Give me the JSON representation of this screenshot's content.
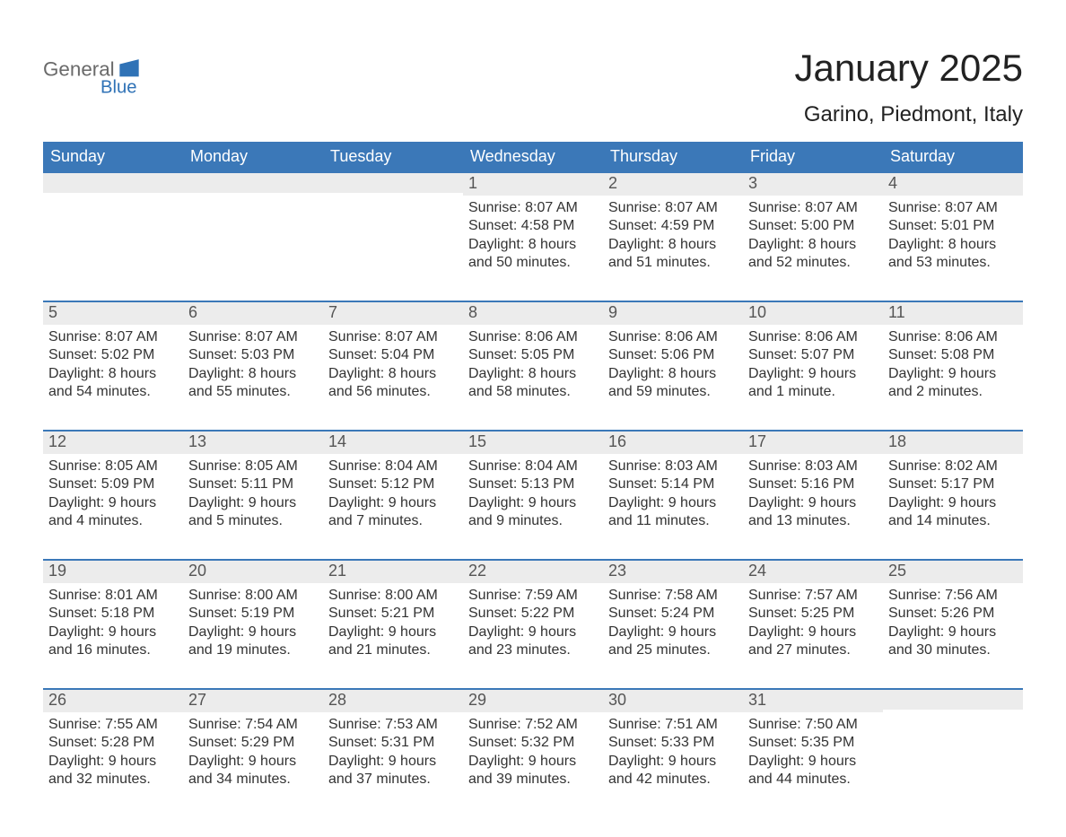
{
  "brand": {
    "word_general": "General",
    "word_blue": "Blue",
    "logo_gray": "#6a6a6a",
    "logo_blue": "#2f72b6"
  },
  "header": {
    "month_title": "January 2025",
    "location": "Garino, Piedmont, Italy"
  },
  "colors": {
    "header_bg": "#3b78b8",
    "daynum_bg": "#ececec",
    "border_blue": "#3b78b8",
    "text_dark": "#333333"
  },
  "calendar": {
    "weekdays": [
      "Sunday",
      "Monday",
      "Tuesday",
      "Wednesday",
      "Thursday",
      "Friday",
      "Saturday"
    ],
    "labels": {
      "sunrise": "Sunrise:",
      "sunset": "Sunset:",
      "daylight": "Daylight:",
      "and": "and"
    },
    "weeks": [
      [
        {
          "day": null
        },
        {
          "day": null
        },
        {
          "day": null
        },
        {
          "day": 1,
          "sunrise": "8:07 AM",
          "sunset": "4:58 PM",
          "dl_h": 8,
          "dl_m": 50
        },
        {
          "day": 2,
          "sunrise": "8:07 AM",
          "sunset": "4:59 PM",
          "dl_h": 8,
          "dl_m": 51
        },
        {
          "day": 3,
          "sunrise": "8:07 AM",
          "sunset": "5:00 PM",
          "dl_h": 8,
          "dl_m": 52
        },
        {
          "day": 4,
          "sunrise": "8:07 AM",
          "sunset": "5:01 PM",
          "dl_h": 8,
          "dl_m": 53
        }
      ],
      [
        {
          "day": 5,
          "sunrise": "8:07 AM",
          "sunset": "5:02 PM",
          "dl_h": 8,
          "dl_m": 54
        },
        {
          "day": 6,
          "sunrise": "8:07 AM",
          "sunset": "5:03 PM",
          "dl_h": 8,
          "dl_m": 55
        },
        {
          "day": 7,
          "sunrise": "8:07 AM",
          "sunset": "5:04 PM",
          "dl_h": 8,
          "dl_m": 56
        },
        {
          "day": 8,
          "sunrise": "8:06 AM",
          "sunset": "5:05 PM",
          "dl_h": 8,
          "dl_m": 58
        },
        {
          "day": 9,
          "sunrise": "8:06 AM",
          "sunset": "5:06 PM",
          "dl_h": 8,
          "dl_m": 59
        },
        {
          "day": 10,
          "sunrise": "8:06 AM",
          "sunset": "5:07 PM",
          "dl_h": 9,
          "dl_m": 1
        },
        {
          "day": 11,
          "sunrise": "8:06 AM",
          "sunset": "5:08 PM",
          "dl_h": 9,
          "dl_m": 2
        }
      ],
      [
        {
          "day": 12,
          "sunrise": "8:05 AM",
          "sunset": "5:09 PM",
          "dl_h": 9,
          "dl_m": 4
        },
        {
          "day": 13,
          "sunrise": "8:05 AM",
          "sunset": "5:11 PM",
          "dl_h": 9,
          "dl_m": 5
        },
        {
          "day": 14,
          "sunrise": "8:04 AM",
          "sunset": "5:12 PM",
          "dl_h": 9,
          "dl_m": 7
        },
        {
          "day": 15,
          "sunrise": "8:04 AM",
          "sunset": "5:13 PM",
          "dl_h": 9,
          "dl_m": 9
        },
        {
          "day": 16,
          "sunrise": "8:03 AM",
          "sunset": "5:14 PM",
          "dl_h": 9,
          "dl_m": 11
        },
        {
          "day": 17,
          "sunrise": "8:03 AM",
          "sunset": "5:16 PM",
          "dl_h": 9,
          "dl_m": 13
        },
        {
          "day": 18,
          "sunrise": "8:02 AM",
          "sunset": "5:17 PM",
          "dl_h": 9,
          "dl_m": 14
        }
      ],
      [
        {
          "day": 19,
          "sunrise": "8:01 AM",
          "sunset": "5:18 PM",
          "dl_h": 9,
          "dl_m": 16
        },
        {
          "day": 20,
          "sunrise": "8:00 AM",
          "sunset": "5:19 PM",
          "dl_h": 9,
          "dl_m": 19
        },
        {
          "day": 21,
          "sunrise": "8:00 AM",
          "sunset": "5:21 PM",
          "dl_h": 9,
          "dl_m": 21
        },
        {
          "day": 22,
          "sunrise": "7:59 AM",
          "sunset": "5:22 PM",
          "dl_h": 9,
          "dl_m": 23
        },
        {
          "day": 23,
          "sunrise": "7:58 AM",
          "sunset": "5:24 PM",
          "dl_h": 9,
          "dl_m": 25
        },
        {
          "day": 24,
          "sunrise": "7:57 AM",
          "sunset": "5:25 PM",
          "dl_h": 9,
          "dl_m": 27
        },
        {
          "day": 25,
          "sunrise": "7:56 AM",
          "sunset": "5:26 PM",
          "dl_h": 9,
          "dl_m": 30
        }
      ],
      [
        {
          "day": 26,
          "sunrise": "7:55 AM",
          "sunset": "5:28 PM",
          "dl_h": 9,
          "dl_m": 32
        },
        {
          "day": 27,
          "sunrise": "7:54 AM",
          "sunset": "5:29 PM",
          "dl_h": 9,
          "dl_m": 34
        },
        {
          "day": 28,
          "sunrise": "7:53 AM",
          "sunset": "5:31 PM",
          "dl_h": 9,
          "dl_m": 37
        },
        {
          "day": 29,
          "sunrise": "7:52 AM",
          "sunset": "5:32 PM",
          "dl_h": 9,
          "dl_m": 39
        },
        {
          "day": 30,
          "sunrise": "7:51 AM",
          "sunset": "5:33 PM",
          "dl_h": 9,
          "dl_m": 42
        },
        {
          "day": 31,
          "sunrise": "7:50 AM",
          "sunset": "5:35 PM",
          "dl_h": 9,
          "dl_m": 44
        },
        {
          "day": null
        }
      ]
    ]
  }
}
